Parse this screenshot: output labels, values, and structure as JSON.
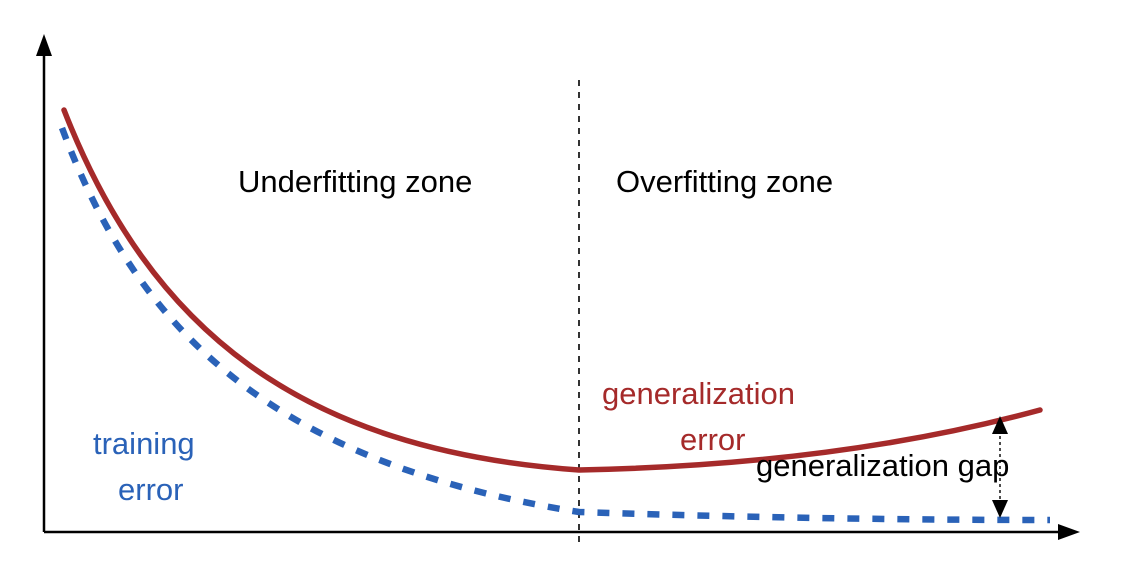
{
  "labels": {
    "underfitting_zone": "Underfitting zone",
    "overfitting_zone": "Overfitting zone",
    "training_error_line1": "training",
    "training_error_line2": "error",
    "generalization_error_line1": "generalization",
    "generalization_error_line2": "error",
    "generalization_gap": "generalization gap"
  },
  "colors": {
    "axis": "#000000",
    "generalization_error": "#a52a2a",
    "training_error": "#2a62b8",
    "text": "#000000"
  }
}
